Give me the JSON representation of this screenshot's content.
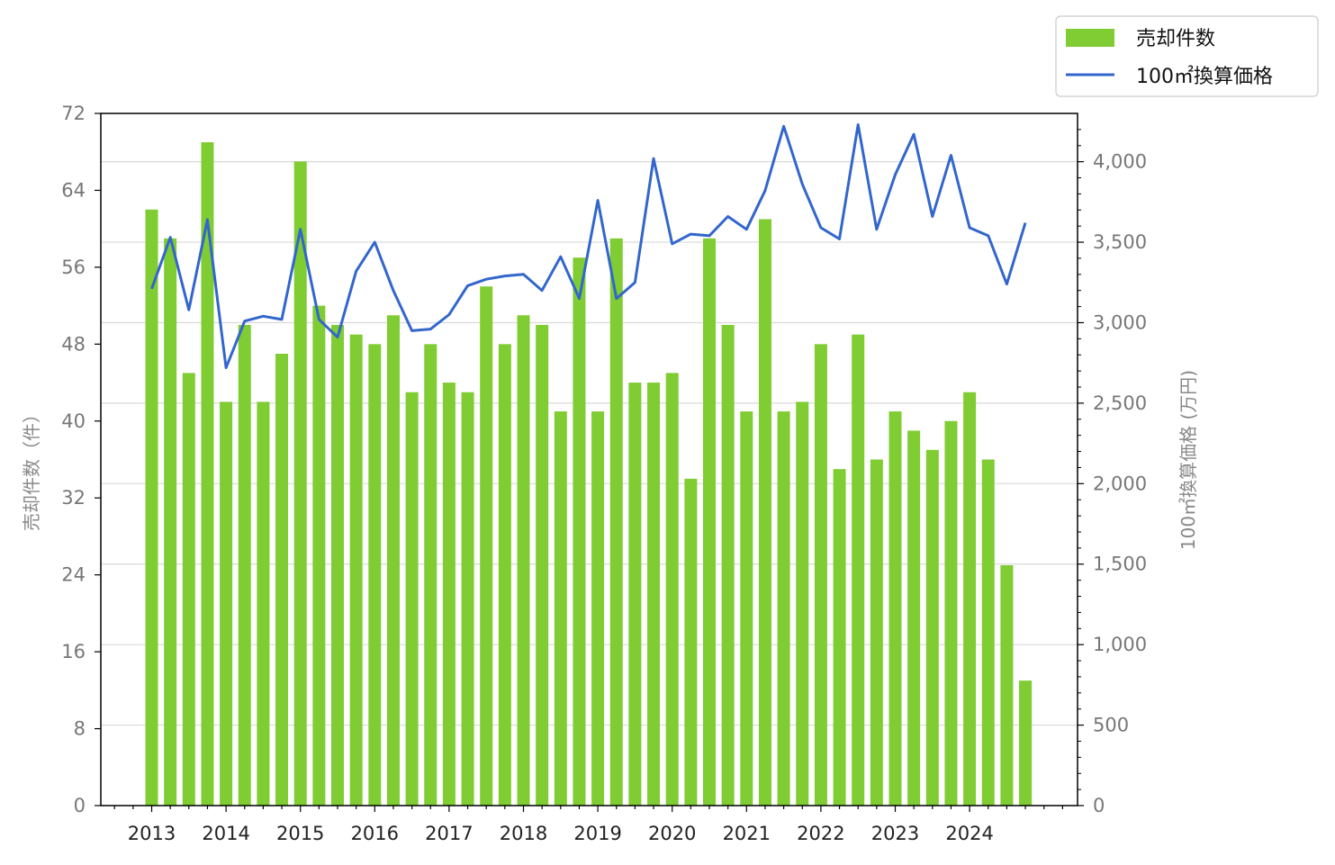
{
  "chart_data": {
    "type": "bar+line",
    "x_ticks": [
      "2013",
      "2014",
      "2015",
      "2016",
      "2017",
      "2018",
      "2019",
      "2020",
      "2021",
      "2022",
      "2023",
      "2024"
    ],
    "left_axis": {
      "label": "売却件数（件）",
      "ylim": [
        0,
        72
      ],
      "ticks": [
        "0",
        "8",
        "16",
        "24",
        "32",
        "40",
        "48",
        "56",
        "64",
        "72"
      ]
    },
    "right_axis": {
      "label": "100㎡換算価格 (万円)",
      "ylim": [
        0,
        4300
      ],
      "ticks": [
        "0",
        "500",
        "1,000",
        "1,500",
        "2,000",
        "2,500",
        "3,000",
        "3,500",
        "4,000"
      ]
    },
    "grid": "horizontal (right axis)",
    "legend_position": "top-right (outside plot)",
    "colors": {
      "bars": "#7fcc33",
      "line": "#3366cc"
    },
    "series": [
      {
        "name": "売却件数",
        "type": "bar",
        "axis": "left",
        "x": [
          "2013Q1",
          "2013Q2",
          "2013Q3",
          "2013Q4",
          "2014Q1",
          "2014Q2",
          "2014Q3",
          "2014Q4",
          "2015Q1",
          "2015Q2",
          "2015Q3",
          "2015Q4",
          "2016Q1",
          "2016Q2",
          "2016Q3",
          "2016Q4",
          "2017Q1",
          "2017Q2",
          "2017Q3",
          "2017Q4",
          "2018Q1",
          "2018Q2",
          "2018Q3",
          "2018Q4",
          "2019Q1",
          "2019Q2",
          "2019Q3",
          "2019Q4",
          "2020Q1",
          "2020Q2",
          "2020Q3",
          "2020Q4",
          "2021Q1",
          "2021Q2",
          "2021Q3",
          "2021Q4",
          "2022Q1",
          "2022Q2",
          "2022Q3",
          "2022Q4",
          "2023Q1",
          "2023Q2",
          "2023Q3",
          "2023Q4",
          "2024Q1",
          "2024Q2",
          "2024Q3",
          "2024Q4"
        ],
        "values": [
          62,
          59,
          45,
          69,
          42,
          50,
          42,
          47,
          67,
          52,
          50,
          49,
          48,
          51,
          43,
          48,
          44,
          43,
          54,
          48,
          51,
          50,
          41,
          57,
          41,
          59,
          44,
          44,
          45,
          34,
          59,
          50,
          41,
          61,
          41,
          42,
          48,
          35,
          49,
          36,
          41,
          39,
          37,
          40,
          43,
          36,
          25,
          13
        ]
      },
      {
        "name": "100㎡換算価格",
        "type": "line",
        "axis": "right",
        "x": [
          "2013Q1",
          "2013Q2",
          "2013Q3",
          "2013Q4",
          "2014Q1",
          "2014Q2",
          "2014Q3",
          "2014Q4",
          "2015Q1",
          "2015Q2",
          "2015Q3",
          "2015Q4",
          "2016Q1",
          "2016Q2",
          "2016Q3",
          "2016Q4",
          "2017Q1",
          "2017Q2",
          "2017Q3",
          "2017Q4",
          "2018Q1",
          "2018Q2",
          "2018Q3",
          "2018Q4",
          "2019Q1",
          "2019Q2",
          "2019Q3",
          "2019Q4",
          "2020Q1",
          "2020Q2",
          "2020Q3",
          "2020Q4",
          "2021Q1",
          "2021Q2",
          "2021Q3",
          "2021Q4",
          "2022Q1",
          "2022Q2",
          "2022Q3",
          "2022Q4",
          "2023Q1",
          "2023Q2",
          "2023Q3",
          "2023Q4",
          "2024Q1",
          "2024Q2",
          "2024Q3",
          "2024Q4"
        ],
        "values": [
          3210,
          3530,
          3080,
          3640,
          2720,
          3010,
          3040,
          3020,
          3580,
          3020,
          2910,
          3320,
          3500,
          3200,
          2950,
          2960,
          3050,
          3230,
          3270,
          3290,
          3300,
          3200,
          3410,
          3150,
          3760,
          3150,
          3250,
          4020,
          3490,
          3550,
          3540,
          3660,
          3580,
          3820,
          4220,
          3860,
          3590,
          3520,
          4230,
          3580,
          3920,
          4170,
          3660,
          4040,
          3590,
          3540,
          3240,
          3620
        ]
      }
    ]
  }
}
